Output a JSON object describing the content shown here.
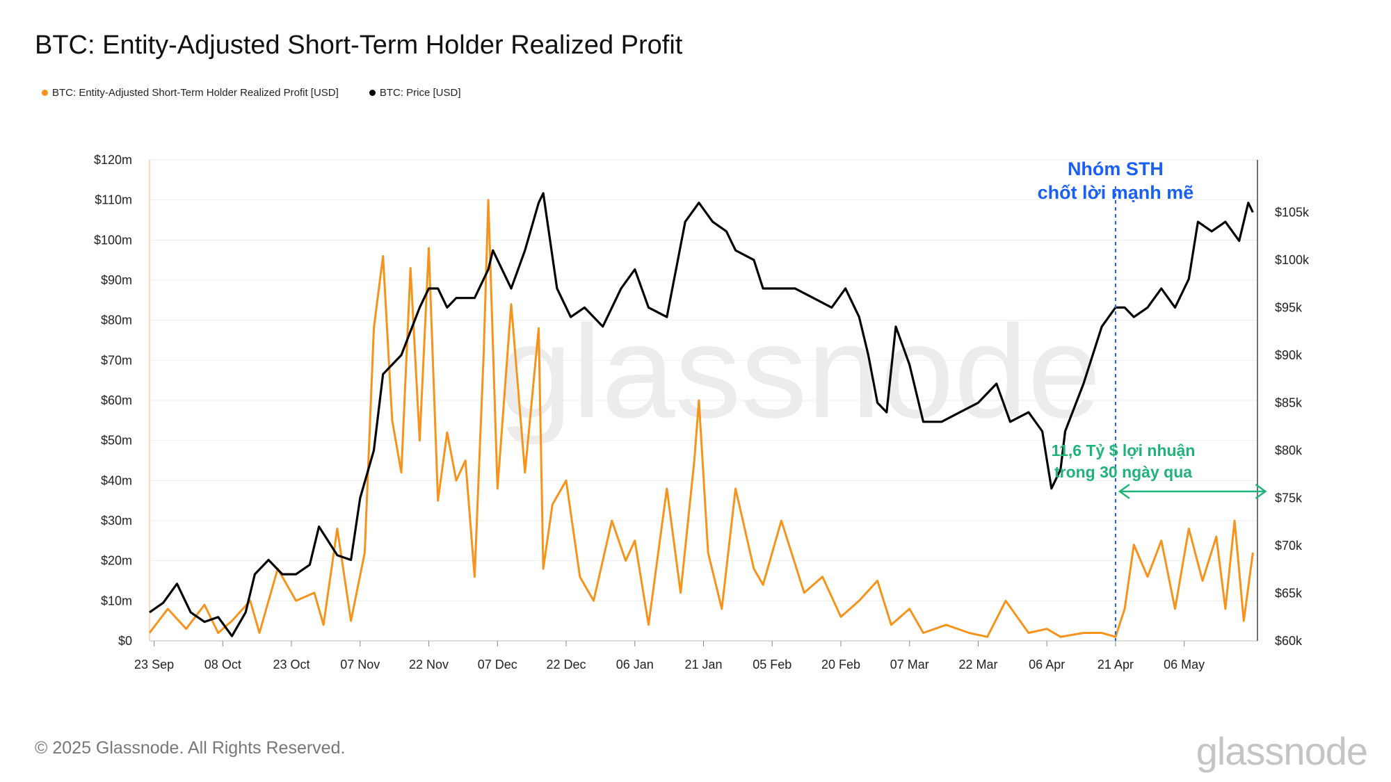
{
  "title": "BTC: Entity-Adjusted Short-Term Holder Realized Profit",
  "legend": [
    {
      "label": "BTC: Entity-Adjusted Short-Term Holder Realized Profit [USD]",
      "color": "#f7931a"
    },
    {
      "label": "BTC: Price [USD]",
      "color": "#000000"
    }
  ],
  "footer": {
    "copyright": "© 2025 Glassnode. All Rights Reserved.",
    "brand": "glassnode"
  },
  "chart_data": {
    "type": "line",
    "x_axis": {
      "ticks": [
        "23 Sep",
        "08 Oct",
        "23 Oct",
        "07 Nov",
        "22 Nov",
        "07 Dec",
        "22 Dec",
        "06 Jan",
        "21 Jan",
        "05 Feb",
        "20 Feb",
        "07 Mar",
        "22 Mar",
        "06 Apr",
        "21 Apr",
        "06 May"
      ]
    },
    "y_left": {
      "min": 0,
      "max": 120,
      "ticks": [
        "$0",
        "$10m",
        "$20m",
        "$30m",
        "$40m",
        "$50m",
        "$60m",
        "$70m",
        "$80m",
        "$90m",
        "$100m",
        "$110m",
        "$120m"
      ]
    },
    "y_right": {
      "min": 60,
      "max": 110,
      "ticks": [
        "$60k",
        "$65k",
        "$70k",
        "$75k",
        "$80k",
        "$85k",
        "$90k",
        "$95k",
        "$100k",
        "$105k"
      ]
    },
    "grid": true,
    "series": [
      {
        "name": "BTC: Entity-Adjusted Short-Term Holder Realized Profit [USD]",
        "axis": "left",
        "color": "#f7931a",
        "unit": "USD millions",
        "x": [
          "2024-09-22",
          "2024-09-26",
          "2024-09-30",
          "2024-10-04",
          "2024-10-07",
          "2024-10-10",
          "2024-10-14",
          "2024-10-16",
          "2024-10-20",
          "2024-10-24",
          "2024-10-28",
          "2024-10-30",
          "2024-11-02",
          "2024-11-05",
          "2024-11-08",
          "2024-11-10",
          "2024-11-12",
          "2024-11-14",
          "2024-11-16",
          "2024-11-18",
          "2024-11-20",
          "2024-11-22",
          "2024-11-24",
          "2024-11-26",
          "2024-11-28",
          "2024-11-30",
          "2024-12-02",
          "2024-12-04",
          "2024-12-05",
          "2024-12-07",
          "2024-12-10",
          "2024-12-13",
          "2024-12-16",
          "2024-12-17",
          "2024-12-19",
          "2024-12-22",
          "2024-12-25",
          "2024-12-28",
          "2025-01-01",
          "2025-01-04",
          "2025-01-06",
          "2025-01-09",
          "2025-01-13",
          "2025-01-16",
          "2025-01-19",
          "2025-01-20",
          "2025-01-22",
          "2025-01-25",
          "2025-01-28",
          "2025-02-01",
          "2025-02-03",
          "2025-02-07",
          "2025-02-12",
          "2025-02-16",
          "2025-02-20",
          "2025-02-24",
          "2025-02-28",
          "2025-03-03",
          "2025-03-07",
          "2025-03-10",
          "2025-03-15",
          "2025-03-20",
          "2025-03-24",
          "2025-03-28",
          "2025-04-02",
          "2025-04-06",
          "2025-04-09",
          "2025-04-14",
          "2025-04-18",
          "2025-04-21",
          "2025-04-23",
          "2025-04-25",
          "2025-04-28",
          "2025-05-01",
          "2025-05-04",
          "2025-05-07",
          "2025-05-10",
          "2025-05-13",
          "2025-05-15",
          "2025-05-17",
          "2025-05-19",
          "2025-05-21"
        ],
        "y": [
          2,
          8,
          3,
          9,
          2,
          5,
          10,
          2,
          18,
          10,
          12,
          4,
          28,
          5,
          22,
          78,
          96,
          55,
          42,
          93,
          50,
          98,
          35,
          52,
          40,
          45,
          16,
          72,
          110,
          38,
          84,
          42,
          78,
          18,
          34,
          40,
          16,
          10,
          30,
          20,
          25,
          4,
          38,
          12,
          45,
          60,
          22,
          8,
          38,
          18,
          14,
          30,
          12,
          16,
          6,
          10,
          15,
          4,
          8,
          2,
          4,
          2,
          1,
          10,
          2,
          3,
          1,
          2,
          2,
          1,
          8,
          24,
          16,
          25,
          8,
          28,
          15,
          26,
          8,
          30,
          5,
          22
        ]
      },
      {
        "name": "BTC: Price [USD]",
        "axis": "right",
        "color": "#000000",
        "unit": "USD thousands",
        "x": [
          "2024-09-22",
          "2024-09-25",
          "2024-09-28",
          "2024-10-01",
          "2024-10-04",
          "2024-10-07",
          "2024-10-10",
          "2024-10-13",
          "2024-10-15",
          "2024-10-18",
          "2024-10-21",
          "2024-10-24",
          "2024-10-27",
          "2024-10-29",
          "2024-11-02",
          "2024-11-05",
          "2024-11-07",
          "2024-11-10",
          "2024-11-12",
          "2024-11-16",
          "2024-11-20",
          "2024-11-22",
          "2024-11-24",
          "2024-11-26",
          "2024-11-28",
          "2024-12-02",
          "2024-12-05",
          "2024-12-06",
          "2024-12-10",
          "2024-12-13",
          "2024-12-16",
          "2024-12-17",
          "2024-12-20",
          "2024-12-23",
          "2024-12-26",
          "2024-12-30",
          "2025-01-03",
          "2025-01-06",
          "2025-01-09",
          "2025-01-13",
          "2025-01-17",
          "2025-01-20",
          "2025-01-23",
          "2025-01-26",
          "2025-01-28",
          "2025-02-01",
          "2025-02-03",
          "2025-02-06",
          "2025-02-10",
          "2025-02-14",
          "2025-02-18",
          "2025-02-21",
          "2025-02-24",
          "2025-02-26",
          "2025-02-28",
          "2025-03-02",
          "2025-03-04",
          "2025-03-07",
          "2025-03-10",
          "2025-03-14",
          "2025-03-18",
          "2025-03-22",
          "2025-03-26",
          "2025-03-29",
          "2025-04-02",
          "2025-04-05",
          "2025-04-07",
          "2025-04-09",
          "2025-04-10",
          "2025-04-14",
          "2025-04-18",
          "2025-04-21",
          "2025-04-23",
          "2025-04-25",
          "2025-04-28",
          "2025-05-01",
          "2025-05-04",
          "2025-05-07",
          "2025-05-09",
          "2025-05-12",
          "2025-05-15",
          "2025-05-18",
          "2025-05-20",
          "2025-05-21"
        ],
        "y": [
          63,
          64,
          66,
          63,
          62,
          62.5,
          60.5,
          63,
          67,
          68.5,
          67,
          67,
          68,
          72,
          69,
          68.5,
          75,
          80,
          88,
          90,
          95,
          97,
          97,
          95,
          96,
          96,
          99,
          101,
          97,
          101,
          106,
          107,
          97,
          94,
          95,
          93,
          97,
          99,
          95,
          94,
          104,
          106,
          104,
          103,
          101,
          100,
          97,
          97,
          97,
          96,
          95,
          97,
          94,
          90,
          85,
          84,
          93,
          89,
          83,
          83,
          84,
          85,
          87,
          83,
          84,
          82,
          76,
          78,
          82,
          87,
          93,
          95,
          95,
          94,
          95,
          97,
          95,
          98,
          104,
          103,
          104,
          102,
          106,
          105
        ]
      }
    ],
    "annotations": {
      "marker_date": "2025-04-21",
      "marker_text": [
        "Nhóm STH",
        "chốt lời mạnh mẽ"
      ],
      "range_text": [
        "11,6 Tỷ $ lợi nhuận",
        "trong 30 ngày qua"
      ],
      "range_from": "2025-04-21",
      "range_to": "2025-05-21"
    }
  }
}
